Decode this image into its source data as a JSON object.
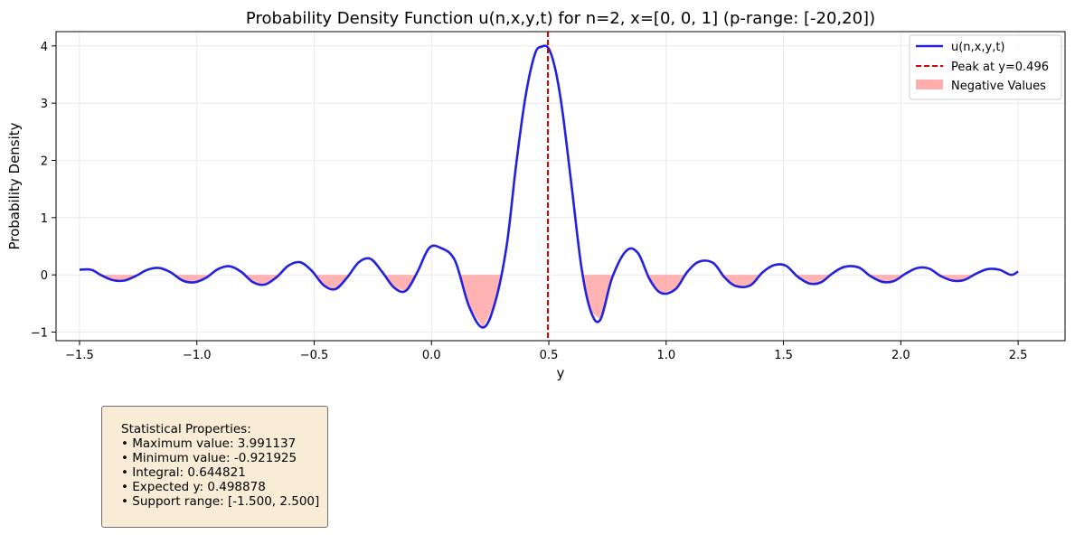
{
  "chart_data": {
    "type": "line",
    "title": "Probability Density Function u(n,x,y,t) for n=2, x=[0, 0, 1] (p-range: [-20,20])",
    "xlabel": "y",
    "ylabel": "Probability Density",
    "xlim": [
      -1.6,
      2.7
    ],
    "ylim": [
      -1.15,
      4.25
    ],
    "xticks": [
      -1.5,
      -1.0,
      -0.5,
      0.0,
      0.5,
      1.0,
      1.5,
      2.0,
      2.5
    ],
    "xtick_labels": [
      "−1.5",
      "−1.0",
      "−0.5",
      "0.0",
      "0.5",
      "1.0",
      "1.5",
      "2.0",
      "2.5"
    ],
    "yticks": [
      -1,
      0,
      1,
      2,
      3,
      4
    ],
    "ytick_labels": [
      "−1",
      "0",
      "1",
      "2",
      "3",
      "4"
    ],
    "grid": true,
    "legend_position": "top-right",
    "series": [
      {
        "name": "u(n,x,y,t)",
        "color": "#2222dd",
        "x": [
          -1.5,
          -1.45,
          -1.41,
          -1.36,
          -1.31,
          -1.26,
          -1.21,
          -1.16,
          -1.11,
          -1.06,
          -1.01,
          -0.96,
          -0.91,
          -0.86,
          -0.81,
          -0.76,
          -0.71,
          -0.66,
          -0.61,
          -0.56,
          -0.51,
          -0.46,
          -0.41,
          -0.36,
          -0.31,
          -0.26,
          -0.21,
          -0.16,
          -0.11,
          -0.06,
          -0.01,
          0.04,
          0.1,
          0.16,
          0.22,
          0.27,
          0.32,
          0.36,
          0.4,
          0.44,
          0.47,
          0.5,
          0.53,
          0.56,
          0.6,
          0.64,
          0.68,
          0.72,
          0.77,
          0.83,
          0.88,
          0.93,
          0.98,
          1.04,
          1.09,
          1.14,
          1.2,
          1.25,
          1.3,
          1.36,
          1.41,
          1.46,
          1.51,
          1.56,
          1.61,
          1.66,
          1.71,
          1.76,
          1.82,
          1.87,
          1.92,
          1.97,
          2.02,
          2.07,
          2.12,
          2.17,
          2.22,
          2.27,
          2.32,
          2.37,
          2.42,
          2.47,
          2.5
        ],
        "y": [
          0.09,
          0.09,
          0.0,
          -0.09,
          -0.1,
          -0.02,
          0.09,
          0.12,
          0.04,
          -0.1,
          -0.13,
          -0.05,
          0.1,
          0.15,
          0.05,
          -0.13,
          -0.17,
          -0.04,
          0.16,
          0.22,
          0.07,
          -0.18,
          -0.25,
          -0.05,
          0.22,
          0.28,
          0.05,
          -0.22,
          -0.28,
          0.05,
          0.47,
          0.47,
          0.25,
          -0.55,
          -0.92,
          -0.5,
          0.5,
          1.9,
          3.1,
          3.85,
          3.99,
          3.95,
          3.55,
          2.8,
          1.45,
          0.1,
          -0.65,
          -0.78,
          -0.05,
          0.42,
          0.38,
          -0.08,
          -0.32,
          -0.25,
          0.05,
          0.23,
          0.21,
          -0.05,
          -0.2,
          -0.18,
          0.04,
          0.17,
          0.16,
          -0.03,
          -0.15,
          -0.13,
          0.03,
          0.14,
          0.13,
          -0.02,
          -0.12,
          -0.11,
          0.02,
          0.12,
          0.11,
          -0.02,
          -0.1,
          -0.09,
          0.02,
          0.1,
          0.09,
          0.0,
          0.06
        ]
      }
    ],
    "peak": {
      "name": "Peak at y=0.496",
      "x": 0.496,
      "color": "#dd0000"
    },
    "negative_fill": {
      "name": "Negative Values",
      "color": "#ff9999"
    }
  },
  "stats": {
    "title": "Statistical Properties:",
    "lines": [
      "• Maximum value: 3.991137",
      "• Minimum value: -0.921925",
      "• Integral: 0.644821",
      "• Expected y: 0.498878",
      "• Support range: [-1.500, 2.500]"
    ]
  }
}
